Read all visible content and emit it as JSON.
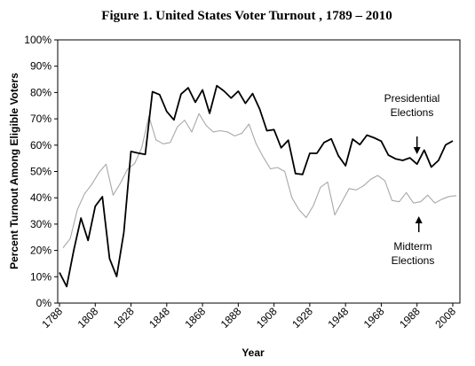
{
  "chart_data": {
    "type": "line",
    "title": "Figure 1. United States Voter Turnout , 1789 – 2010",
    "xlabel": "Year",
    "ylabel": "Percent Turnout Among Eligible Voters",
    "xlim": [
      1788,
      2010
    ],
    "ylim": [
      0,
      100
    ],
    "x_ticks": [
      1788,
      1808,
      1828,
      1848,
      1868,
      1888,
      1908,
      1928,
      1948,
      1968,
      1988,
      2008
    ],
    "y_ticks": [
      "0%",
      "10%",
      "20%",
      "30%",
      "40%",
      "50%",
      "60%",
      "70%",
      "80%",
      "90%",
      "100%"
    ],
    "grid": false,
    "legend": "none",
    "annotations": [
      {
        "lines": [
          "Presidential",
          "Elections"
        ],
        "series": "Presidential Elections",
        "arrow_x": 1988
      },
      {
        "lines": [
          "Midterm",
          "Elections"
        ],
        "series": "Midterm Elections",
        "arrow_x": 1989
      }
    ],
    "series": [
      {
        "name": "Presidential Elections",
        "color": "#000000",
        "points": [
          [
            1788,
            11.6
          ],
          [
            1792,
            6.3
          ],
          [
            1796,
            20.1
          ],
          [
            1800,
            32.3
          ],
          [
            1804,
            23.8
          ],
          [
            1808,
            36.8
          ],
          [
            1812,
            40.4
          ],
          [
            1816,
            16.9
          ],
          [
            1820,
            10.1
          ],
          [
            1824,
            26.9
          ],
          [
            1828,
            57.6
          ],
          [
            1832,
            57.0
          ],
          [
            1836,
            56.5
          ],
          [
            1840,
            80.3
          ],
          [
            1844,
            79.2
          ],
          [
            1848,
            72.8
          ],
          [
            1852,
            69.6
          ],
          [
            1856,
            79.4
          ],
          [
            1860,
            81.8
          ],
          [
            1864,
            76.3
          ],
          [
            1868,
            81.0
          ],
          [
            1872,
            72.1
          ],
          [
            1876,
            82.6
          ],
          [
            1880,
            80.6
          ],
          [
            1884,
            77.9
          ],
          [
            1888,
            80.5
          ],
          [
            1892,
            75.9
          ],
          [
            1896,
            79.6
          ],
          [
            1900,
            73.7
          ],
          [
            1904,
            65.5
          ],
          [
            1908,
            65.9
          ],
          [
            1912,
            59.0
          ],
          [
            1916,
            61.9
          ],
          [
            1920,
            49.2
          ],
          [
            1924,
            48.9
          ],
          [
            1928,
            56.9
          ],
          [
            1932,
            56.9
          ],
          [
            1936,
            61.0
          ],
          [
            1940,
            62.4
          ],
          [
            1944,
            56.0
          ],
          [
            1948,
            52.2
          ],
          [
            1952,
            62.3
          ],
          [
            1956,
            60.2
          ],
          [
            1960,
            63.8
          ],
          [
            1964,
            62.8
          ],
          [
            1968,
            61.5
          ],
          [
            1972,
            56.2
          ],
          [
            1976,
            54.8
          ],
          [
            1980,
            54.2
          ],
          [
            1984,
            55.2
          ],
          [
            1988,
            52.8
          ],
          [
            1992,
            58.1
          ],
          [
            1996,
            51.7
          ],
          [
            2000,
            54.2
          ],
          [
            2004,
            60.1
          ],
          [
            2008,
            61.6
          ]
        ]
      },
      {
        "name": "Midterm Elections",
        "color": "#a8a8a8",
        "points": [
          [
            1790,
            21.0
          ],
          [
            1794,
            24.5
          ],
          [
            1798,
            35.5
          ],
          [
            1802,
            41.5
          ],
          [
            1806,
            45.0
          ],
          [
            1810,
            49.5
          ],
          [
            1814,
            52.8
          ],
          [
            1818,
            41.0
          ],
          [
            1822,
            45.5
          ],
          [
            1826,
            50.8
          ],
          [
            1830,
            53.0
          ],
          [
            1834,
            59.0
          ],
          [
            1838,
            71.0
          ],
          [
            1842,
            62.0
          ],
          [
            1846,
            60.5
          ],
          [
            1850,
            61.0
          ],
          [
            1854,
            67.0
          ],
          [
            1858,
            69.5
          ],
          [
            1862,
            65.0
          ],
          [
            1866,
            72.0
          ],
          [
            1870,
            67.5
          ],
          [
            1874,
            65.0
          ],
          [
            1878,
            65.5
          ],
          [
            1882,
            65.0
          ],
          [
            1886,
            63.5
          ],
          [
            1890,
            64.5
          ],
          [
            1894,
            68.0
          ],
          [
            1898,
            60.5
          ],
          [
            1902,
            55.5
          ],
          [
            1906,
            51.0
          ],
          [
            1910,
            51.5
          ],
          [
            1914,
            50.0
          ],
          [
            1918,
            40.0
          ],
          [
            1922,
            35.5
          ],
          [
            1926,
            32.5
          ],
          [
            1930,
            37.0
          ],
          [
            1934,
            44.0
          ],
          [
            1938,
            46.0
          ],
          [
            1942,
            33.5
          ],
          [
            1946,
            38.5
          ],
          [
            1950,
            43.5
          ],
          [
            1954,
            43.0
          ],
          [
            1958,
            44.5
          ],
          [
            1962,
            47.0
          ],
          [
            1966,
            48.5
          ],
          [
            1970,
            46.5
          ],
          [
            1974,
            39.0
          ],
          [
            1978,
            38.5
          ],
          [
            1982,
            42.0
          ],
          [
            1986,
            38.0
          ],
          [
            1990,
            38.5
          ],
          [
            1994,
            41.0
          ],
          [
            1998,
            38.0
          ],
          [
            2002,
            39.5
          ],
          [
            2006,
            40.5
          ],
          [
            2010,
            40.8
          ]
        ]
      }
    ]
  }
}
